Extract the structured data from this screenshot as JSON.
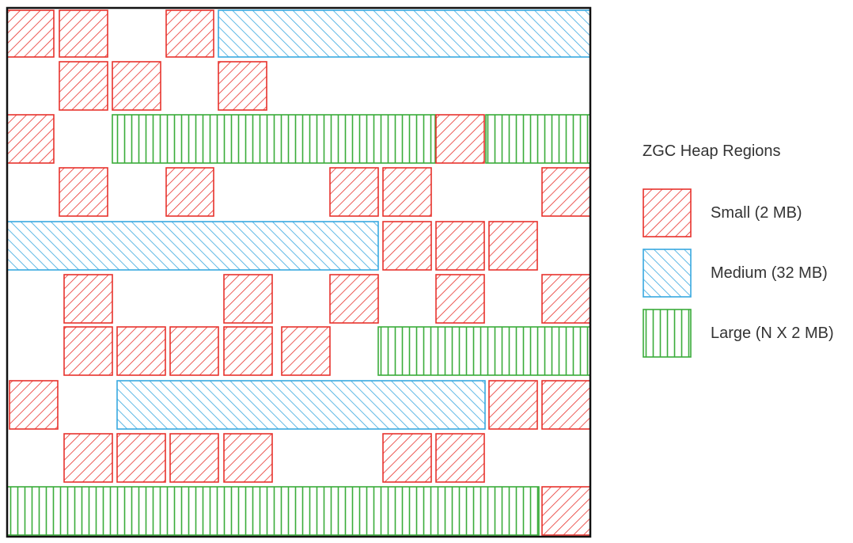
{
  "legend": {
    "title": "ZGC Heap Regions",
    "items": [
      {
        "key": "small",
        "label": "Small (2 MB)",
        "color": "#e8322c",
        "pattern": "diagonal-forward"
      },
      {
        "key": "medium",
        "label": "Medium (32 MB)",
        "color": "#38a8e0",
        "pattern": "diagonal-backward"
      },
      {
        "key": "large",
        "label": "Large (N X 2 MB)",
        "color": "#3aac3a",
        "pattern": "vertical"
      }
    ]
  },
  "heap": {
    "frame_color": "#111111",
    "region_kinds": [
      "small",
      "medium",
      "large"
    ]
  }
}
